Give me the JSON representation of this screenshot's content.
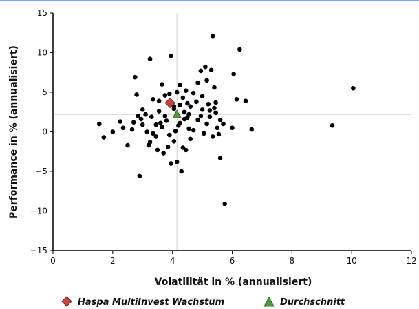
{
  "chart_data": {
    "type": "scatter",
    "xlabel": "Volatilität in % (annualisiert)",
    "ylabel": "Performance in % (annualisiert)",
    "xlim": [
      0,
      12
    ],
    "ylim": [
      -15,
      15
    ],
    "xticks": [
      0,
      2,
      4,
      6,
      8,
      10,
      12
    ],
    "yticks": [
      15,
      10,
      5,
      0,
      -5,
      -10,
      -15
    ],
    "ytick_labels": [
      "15",
      "10",
      "5",
      "0",
      "−5",
      "−10",
      "−15"
    ],
    "grid": false,
    "legend_position": "bottom",
    "reference_lines": {
      "x": 4.15,
      "y": 2.2
    },
    "colors": {
      "points": "#000000",
      "fund": "#c84444",
      "average": "#4f9a3c",
      "reference_line": "#d4d4d4"
    },
    "series": [
      {
        "marker": "circle",
        "points": [
          [
            1.55,
            1.0
          ],
          [
            1.7,
            -0.7
          ],
          [
            2.0,
            0.0
          ],
          [
            2.25,
            1.3
          ],
          [
            2.35,
            0.5
          ],
          [
            2.5,
            -1.7
          ],
          [
            2.7,
            1.2
          ],
          [
            2.75,
            6.9
          ],
          [
            2.85,
            2.0
          ],
          [
            2.9,
            -5.6
          ],
          [
            3.0,
            2.8
          ],
          [
            2.8,
            4.7
          ],
          [
            3.1,
            2.2
          ],
          [
            3.2,
            -1.7
          ],
          [
            3.25,
            9.2
          ],
          [
            3.35,
            4.1
          ],
          [
            3.45,
            0.9
          ],
          [
            3.5,
            -2.3
          ],
          [
            3.55,
            2.6
          ],
          [
            3.65,
            6.0
          ],
          [
            3.7,
            -2.7
          ],
          [
            3.75,
            4.6
          ],
          [
            3.9,
            4.8
          ],
          [
            3.95,
            9.6
          ],
          [
            3.95,
            -4.0
          ],
          [
            4.05,
            3.2
          ],
          [
            4.15,
            -3.8
          ],
          [
            4.2,
            0.8
          ],
          [
            4.25,
            5.9
          ],
          [
            4.3,
            -5.0
          ],
          [
            4.35,
            4.3
          ],
          [
            4.4,
            2.5
          ],
          [
            4.45,
            -2.3
          ],
          [
            4.5,
            1.8
          ],
          [
            4.55,
            0.4
          ],
          [
            4.6,
            -0.9
          ],
          [
            4.7,
            4.9
          ],
          [
            4.8,
            3.8
          ],
          [
            4.85,
            1.5
          ],
          [
            4.95,
            7.7
          ],
          [
            5.0,
            2.8
          ],
          [
            5.1,
            8.2
          ],
          [
            5.15,
            6.5
          ],
          [
            5.25,
            1.9
          ],
          [
            5.3,
            7.8
          ],
          [
            5.35,
            12.1
          ],
          [
            5.4,
            3.0
          ],
          [
            5.45,
            3.7
          ],
          [
            5.5,
            0.5
          ],
          [
            5.55,
            -0.3
          ],
          [
            5.6,
            -3.3
          ],
          [
            5.7,
            1.0
          ],
          [
            5.75,
            -9.1
          ],
          [
            6.0,
            0.5
          ],
          [
            6.05,
            7.3
          ],
          [
            6.15,
            4.1
          ],
          [
            6.25,
            10.4
          ],
          [
            6.45,
            3.9
          ],
          [
            6.65,
            0.3
          ],
          [
            9.35,
            0.8
          ],
          [
            10.05,
            5.5
          ],
          [
            3.35,
            -0.2
          ],
          [
            3.45,
            -0.6
          ],
          [
            3.8,
            1.4
          ],
          [
            4.05,
            2.9
          ],
          [
            4.25,
            1.1
          ],
          [
            4.4,
            1.6
          ],
          [
            4.6,
            3.2
          ],
          [
            4.95,
            2.0
          ],
          [
            5.2,
            3.5
          ],
          [
            5.4,
            5.6
          ],
          [
            3.0,
            0.9
          ],
          [
            3.6,
            1.1
          ],
          [
            3.9,
            -0.4
          ],
          [
            4.35,
            -2.0
          ],
          [
            4.7,
            0.2
          ],
          [
            5.15,
            1.0
          ],
          [
            5.35,
            -0.6
          ],
          [
            2.65,
            0.3
          ],
          [
            3.15,
            0.0
          ],
          [
            3.65,
            0.6
          ],
          [
            4.05,
            -1.2
          ],
          [
            4.5,
            3.6
          ],
          [
            5.0,
            4.5
          ],
          [
            5.45,
            2.4
          ],
          [
            4.15,
            5.0
          ],
          [
            3.55,
            3.9
          ],
          [
            4.85,
            6.2
          ],
          [
            5.25,
            2.7
          ],
          [
            2.95,
            1.6
          ],
          [
            3.25,
            -1.3
          ],
          [
            3.75,
            2.0
          ],
          [
            4.1,
            0.1
          ],
          [
            4.55,
            2.2
          ],
          [
            5.05,
            -0.2
          ],
          [
            4.25,
            3.4
          ],
          [
            4.45,
            5.2
          ],
          [
            3.3,
            1.9
          ],
          [
            3.85,
            -1.9
          ],
          [
            5.6,
            1.5
          ]
        ]
      },
      {
        "name": "Haspa MultiInvest Wachstum",
        "marker": "diamond",
        "points": [
          [
            3.92,
            3.65
          ]
        ]
      },
      {
        "name": "Durchschnitt",
        "marker": "triangle",
        "points": [
          [
            4.15,
            2.2
          ]
        ]
      }
    ]
  }
}
